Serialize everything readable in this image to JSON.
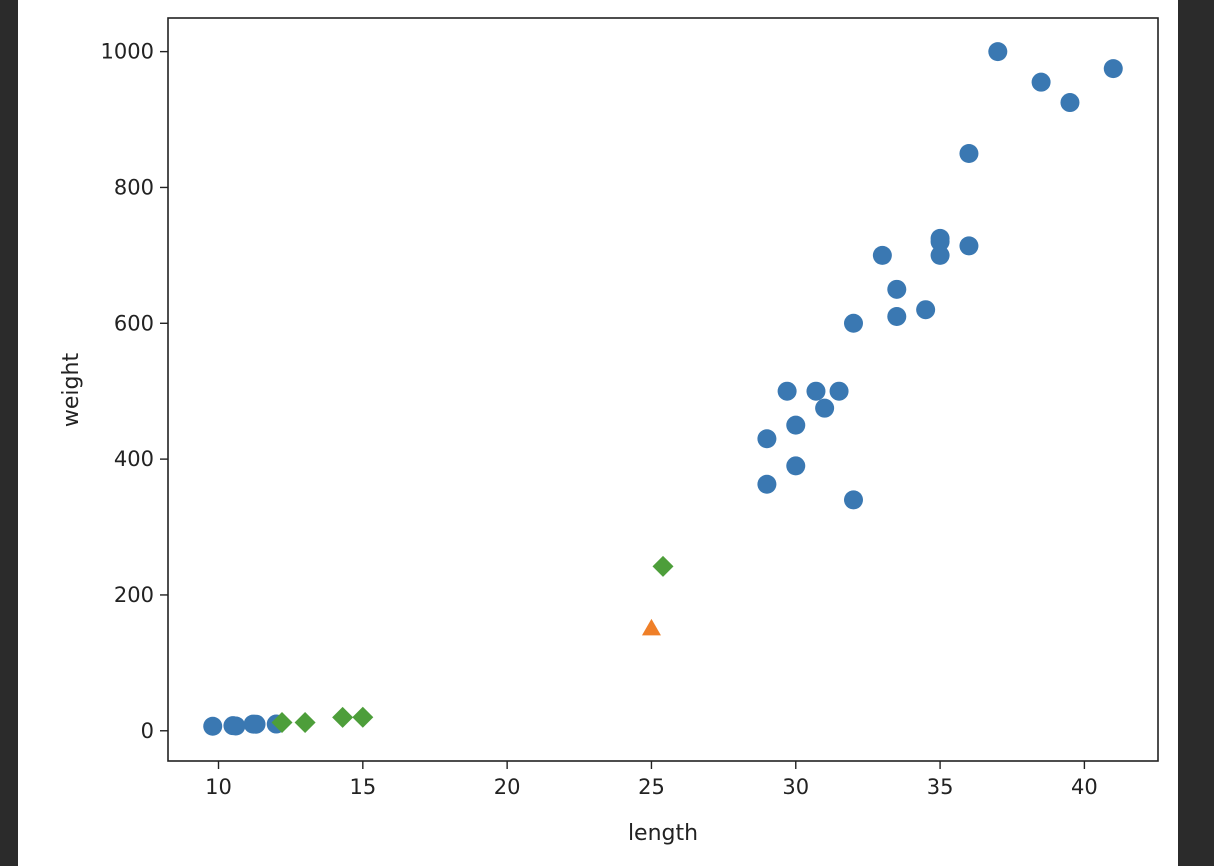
{
  "chart_data": {
    "type": "scatter",
    "xlabel": "length",
    "ylabel": "weight",
    "xlim": [
      8.25,
      42.55
    ],
    "ylim": [
      -44.5,
      1049.5
    ],
    "x_ticks": [
      10,
      15,
      20,
      25,
      30,
      35,
      40
    ],
    "y_ticks": [
      0,
      200,
      400,
      600,
      800,
      1000
    ],
    "grid": false,
    "legend": "none",
    "series": [
      {
        "marker": "circle",
        "color": "#3a78b2",
        "points": [
          [
            9.8,
            6.7
          ],
          [
            10.5,
            7.5
          ],
          [
            10.6,
            7.0
          ],
          [
            11.2,
            9.8
          ],
          [
            11.3,
            9.7
          ],
          [
            12.0,
            9.9
          ],
          [
            29.0,
            430
          ],
          [
            29.0,
            363
          ],
          [
            29.7,
            500
          ],
          [
            30.0,
            450
          ],
          [
            30.0,
            390
          ],
          [
            30.7,
            500
          ],
          [
            31.0,
            475
          ],
          [
            31.5,
            500
          ],
          [
            32.0,
            600
          ],
          [
            32.0,
            340
          ],
          [
            33.0,
            700
          ],
          [
            33.5,
            650
          ],
          [
            33.5,
            610
          ],
          [
            34.5,
            620
          ],
          [
            35.0,
            725
          ],
          [
            35.0,
            720
          ],
          [
            35.0,
            700
          ],
          [
            36.0,
            850
          ],
          [
            36.0,
            714
          ],
          [
            37.0,
            1000
          ],
          [
            38.5,
            955
          ],
          [
            39.5,
            925
          ],
          [
            41.0,
            975
          ]
        ]
      },
      {
        "marker": "triangle",
        "color": "#ef7f28",
        "points": [
          [
            25,
            150
          ]
        ]
      },
      {
        "marker": "diamond",
        "color": "#4d9e3a",
        "points": [
          [
            12.2,
            12.2
          ],
          [
            13.0,
            12.2
          ],
          [
            14.3,
            19.7
          ],
          [
            15.0,
            19.9
          ],
          [
            25.4,
            242
          ]
        ]
      }
    ]
  }
}
